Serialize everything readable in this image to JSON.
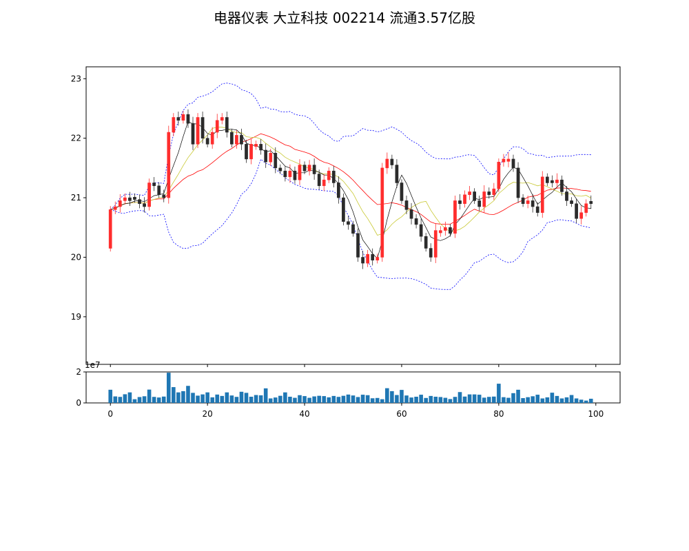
{
  "chart_data": [
    {
      "type": "candlestick",
      "title": "电器仪表 大立科技 002214 流通3.57亿股",
      "ylim": [
        18.2,
        23.2
      ],
      "xlim": [
        -5,
        105
      ],
      "y_ticks": [
        19,
        20,
        21,
        22,
        23
      ],
      "x_ticks": [
        0,
        20,
        40,
        60,
        80,
        100
      ],
      "grid": false,
      "colors": {
        "up": "#ff2d2d",
        "down": "#2b2b2b",
        "ma5": "#000000",
        "ma10": "#c8c832",
        "ma20": "#ff0000",
        "boll": "#0000ff"
      },
      "close": [
        20.8,
        20.85,
        20.95,
        21.0,
        20.95,
        20.97,
        20.9,
        20.85,
        21.25,
        21.2,
        21.05,
        21.0,
        22.1,
        22.35,
        22.3,
        22.4,
        22.25,
        21.9,
        22.35,
        22.0,
        21.9,
        22.1,
        22.3,
        22.35,
        22.1,
        21.9,
        22.05,
        21.9,
        21.65,
        21.9,
        21.9,
        21.8,
        21.6,
        21.75,
        21.5,
        21.45,
        21.35,
        21.45,
        21.3,
        21.55,
        21.45,
        21.55,
        21.4,
        21.2,
        21.3,
        21.45,
        21.25,
        21.0,
        20.6,
        20.55,
        20.4,
        20.0,
        19.9,
        20.05,
        19.95,
        20.0,
        21.5,
        21.65,
        21.55,
        21.25,
        20.95,
        20.8,
        20.65,
        20.55,
        20.35,
        20.15,
        20.0,
        20.45,
        20.45,
        20.5,
        20.4,
        20.95,
        20.9,
        21.05,
        21.1,
        20.95,
        20.85,
        21.1,
        21.05,
        21.15,
        21.6,
        21.65,
        21.65,
        21.5,
        21.0,
        20.9,
        20.95,
        20.85,
        20.75,
        21.35,
        21.25,
        21.25,
        21.3,
        21.1,
        20.95,
        20.9,
        20.65,
        20.75,
        20.9,
        20.9
      ],
      "volume": [
        8.5,
        4.2,
        3.9,
        5.6,
        6.8,
        2.4,
        3.8,
        4.3,
        8.6,
        3.9,
        3.5,
        4.1,
        19.5,
        10.2,
        6.8,
        7.6,
        11.0,
        6.5,
        4.7,
        5.5,
        6.8,
        3.6,
        5.4,
        4.5,
        6.8,
        4.8,
        3.9,
        7.2,
        6.5,
        4.0,
        5.1,
        4.9,
        9.4,
        2.9,
        3.5,
        4.6,
        6.8,
        4.0,
        3.3,
        5.0,
        4.4,
        3.3,
        4.2,
        4.6,
        4.4,
        3.6,
        4.5,
        3.9,
        4.6,
        5.4,
        4.8,
        3.8,
        5.3,
        5.0,
        3.0,
        3.2,
        2.4,
        9.5,
        7.6,
        5.1,
        8.4,
        4.8,
        3.5,
        4.0,
        5.3,
        3.2,
        4.5,
        4.0,
        3.8,
        3.3,
        2.5,
        3.9,
        7.0,
        4.1,
        5.5,
        5.5,
        5.3,
        3.4,
        3.9,
        4.1,
        12.4,
        3.7,
        3.3,
        6.3,
        8.5,
        3.1,
        3.7,
        4.3,
        5.3,
        2.9,
        3.6,
        6.6,
        4.5,
        2.9,
        3.6,
        5.1,
        2.9,
        2.1,
        1.5,
        2.7
      ],
      "volume_axis": {
        "ylim": [
          0,
          2
        ],
        "y_ticks": [
          0,
          2
        ],
        "scale_label": "1e7"
      }
    }
  ]
}
